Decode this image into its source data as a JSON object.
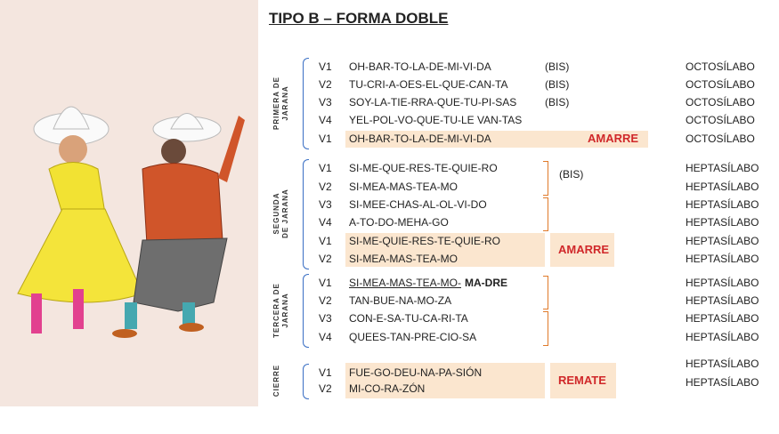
{
  "title": "TIPO B – FORMA DOBLE",
  "sections": [
    {
      "label": [
        "PRIMERA DE",
        "JARANA"
      ],
      "tag": "AMARRE",
      "lines": [
        {
          "verse": "V1",
          "text": "OH-BAR-TO-LA-DE-MI-VI-DA",
          "note": "(BIS)",
          "meter": "OCTOSÍLABO"
        },
        {
          "verse": "V2",
          "text": "TU-CRI-A-OES-EL-QUE-CAN-TA",
          "note": "(BIS)",
          "meter": "OCTOSÍLABO"
        },
        {
          "verse": "V3",
          "text": "SOY-LA-TIE-RRA-QUE-TU-PI-SAS",
          "note": "(BIS)",
          "meter": "OCTOSÍLABO"
        },
        {
          "verse": "V4",
          "text": "YEL-POL-VO-QUE-TU-LE VAN-TAS",
          "meter": "OCTOSÍLABO"
        },
        {
          "verse": "V1",
          "text": "OH-BAR-TO-LA-DE-MI-VI-DA",
          "meter": "OCTOSÍLABO"
        }
      ]
    },
    {
      "label": [
        "SEGUNDA",
        "DE JARANA"
      ],
      "note": "(BIS)",
      "tag": "AMARRE",
      "lines": [
        {
          "verse": "V1",
          "text": "SI-ME-QUE-RES-TE-QUIE-RO",
          "meter": "HEPTASÍLABO"
        },
        {
          "verse": "V2",
          "text": "SI-MEA-MAS-TEA-MO",
          "meter": "HEPTASÍLABO"
        },
        {
          "verse": "V3",
          "text": "SI-MEE-CHAS-AL-OL-VI-DO",
          "meter": "HEPTASÍLABO"
        },
        {
          "verse": "V4",
          "text": "A-TO-DO-MEHA-GO",
          "meter": "HEPTASÍLABO"
        },
        {
          "verse": "V1",
          "text": "SI-ME-QUIE-RES-TE-QUIE-RO",
          "meter": "HEPTASÍLABO"
        },
        {
          "verse": "V2",
          "text": "SI-MEA-MAS-TEA-MO",
          "meter": "HEPTASÍLABO"
        }
      ]
    },
    {
      "label": [
        "TERCERA DE",
        "JARANA"
      ],
      "lines": [
        {
          "verse": "V1",
          "text": "SI-MEA-MAS-TEA-MO-",
          "extra": "MA-DRE",
          "meter": "HEPTASÍLABO"
        },
        {
          "verse": "V2",
          "text": "TAN-BUE-NA-MO-ZA",
          "meter": "HEPTASÍLABO"
        },
        {
          "verse": "V3",
          "text": "CON-E-SA-TU-CA-RI-TA",
          "meter": "HEPTASÍLABO"
        },
        {
          "verse": "V4",
          "text": "QUEES-TAN-PRE-CIO-SA",
          "meter": "HEPTASÍLABO"
        }
      ]
    },
    {
      "label": [
        "CIERRE"
      ],
      "tag": "REMATE",
      "lines": [
        {
          "verse": "V1",
          "text": "FUE-GO-DEU-NA-PA-SIÓN",
          "meter": "HEPTASÍLABO"
        },
        {
          "verse": "V2",
          "text": "MI-CO-RA-ZÓN",
          "meter": "HEPTASÍLABO"
        }
      ]
    }
  ]
}
